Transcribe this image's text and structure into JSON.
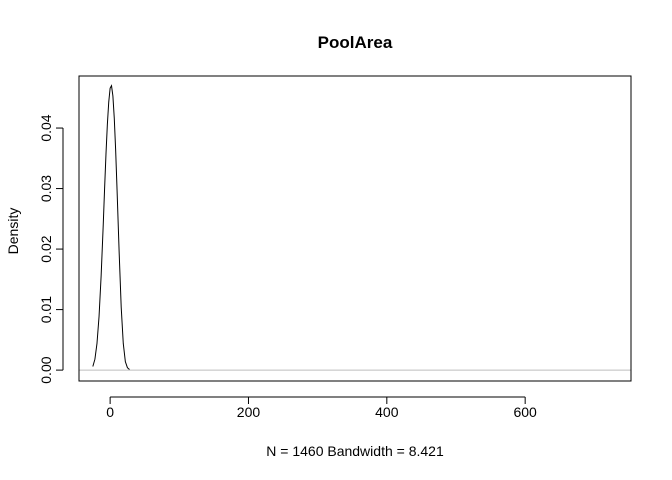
{
  "chart_data": {
    "type": "line",
    "title": "PoolArea",
    "xlabel": "N = 1460   Bandwidth = 8.421",
    "ylabel": "Density",
    "xlim": [
      -45,
      753
    ],
    "ylim": [
      -0.0018,
      0.0486
    ],
    "x_ticks": [
      0,
      200,
      400,
      600
    ],
    "y_ticks": [
      0.0,
      0.01,
      0.02,
      0.03,
      0.04
    ],
    "y_tick_labels": [
      "0.00",
      "0.01",
      "0.02",
      "0.03",
      "0.04"
    ],
    "grid": false,
    "legend": "none",
    "baseline": {
      "y": 0,
      "color": "#bebebe"
    },
    "series": [
      {
        "x": [
          -25,
          -22,
          -19,
          -16,
          -13,
          -10,
          -8,
          -6,
          -4,
          -2,
          0,
          2,
          4,
          6,
          8,
          10,
          13,
          16,
          19,
          22,
          25,
          28
        ],
        "y": [
          0.0006,
          0.0018,
          0.0044,
          0.0089,
          0.0156,
          0.0239,
          0.03,
          0.0357,
          0.0406,
          0.0443,
          0.0466,
          0.047,
          0.0453,
          0.0416,
          0.0363,
          0.0298,
          0.0196,
          0.0104,
          0.0044,
          0.0014,
          0.0004,
          0.0001
        ],
        "color": "#000000"
      }
    ]
  }
}
